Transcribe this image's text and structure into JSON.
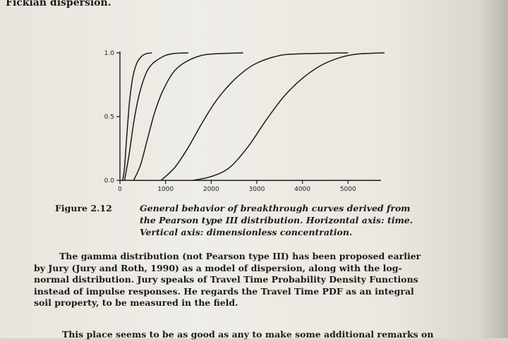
{
  "top_line": "Fickian dispersion.",
  "chart_data": {
    "type": "line",
    "title": "",
    "xlabel": "",
    "ylabel": "",
    "xlim": [
      0,
      5800
    ],
    "ylim": [
      0,
      1.0
    ],
    "x_ticks": [
      0,
      1000,
      2000,
      3000,
      4000,
      5000
    ],
    "y_ticks": [
      0.0,
      0.5,
      1.0
    ],
    "x_tick_labels": [
      "0",
      "1000",
      "2000",
      "3000",
      "4000",
      "5000"
    ],
    "y_tick_labels": [
      "0.0",
      "0.5",
      "1.0"
    ],
    "grid": false,
    "series": [
      {
        "x": [
          60,
          100,
          150,
          200,
          250,
          300,
          350,
          400,
          500,
          600,
          700
        ],
        "values": [
          0.0,
          0.1,
          0.35,
          0.58,
          0.74,
          0.84,
          0.9,
          0.94,
          0.98,
          0.995,
          1.0
        ]
      },
      {
        "x": [
          100,
          200,
          300,
          400,
          500,
          600,
          700,
          800,
          1000,
          1200,
          1500
        ],
        "values": [
          0.0,
          0.2,
          0.45,
          0.64,
          0.77,
          0.86,
          0.91,
          0.94,
          0.98,
          0.995,
          1.0
        ]
      },
      {
        "x": [
          300,
          450,
          600,
          750,
          900,
          1050,
          1200,
          1400,
          1700,
          2000,
          2700
        ],
        "values": [
          0.0,
          0.12,
          0.32,
          0.52,
          0.67,
          0.78,
          0.86,
          0.92,
          0.97,
          0.99,
          1.0
        ]
      },
      {
        "x": [
          900,
          1200,
          1500,
          1800,
          2100,
          2400,
          2700,
          3000,
          3400,
          3800,
          5000
        ],
        "values": [
          0.0,
          0.1,
          0.26,
          0.45,
          0.62,
          0.75,
          0.85,
          0.92,
          0.97,
          0.99,
          1.0
        ]
      },
      {
        "x": [
          1600,
          2000,
          2400,
          2800,
          3200,
          3600,
          4000,
          4400,
          4800,
          5200,
          5800
        ],
        "values": [
          0.0,
          0.03,
          0.1,
          0.26,
          0.47,
          0.66,
          0.8,
          0.9,
          0.96,
          0.99,
          1.0
        ]
      }
    ]
  },
  "caption": {
    "label": "Figure 2.12",
    "lines": [
      "General behavior of breakthrough curves derived from",
      "the Pearson type III distribution. Horizontal axis: time.",
      "Vertical axis: dimensionless concentration."
    ]
  },
  "body": {
    "lines": [
      "The gamma distribution (not Pearson type III) has been proposed earlier",
      "by Jury (Jury and Roth, 1990) as a model of dispersion, along with the log-",
      "normal distribution. Jury speaks of Travel Time Probability Density Functions",
      "instead of impulse responses. He regards the Travel Time PDF as an integral",
      "soil property, to be measured in the field."
    ],
    "next_line": "This place seems to be as good as any to make some additional remarks on"
  }
}
